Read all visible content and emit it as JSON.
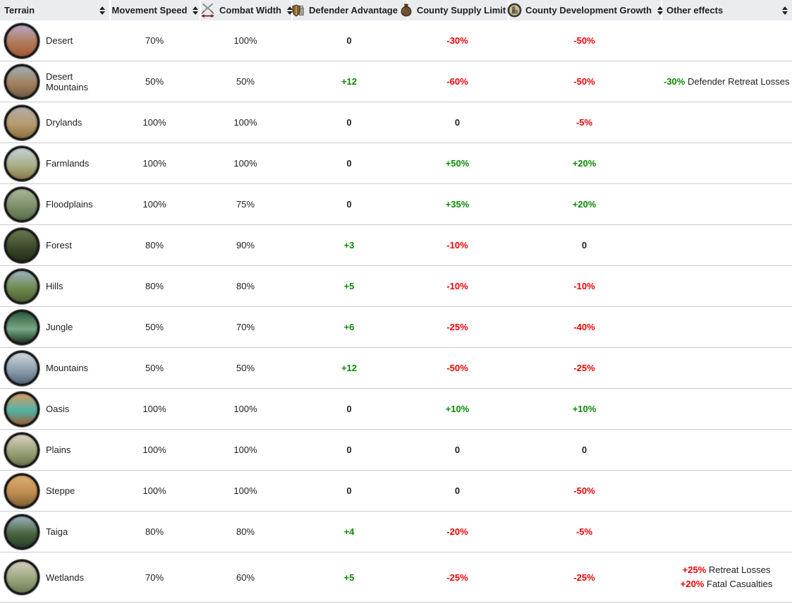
{
  "colors": {
    "green": "#0a8a00",
    "red": "#ee0000",
    "header_bg": "#eaecf0",
    "row_border": "#cccccc"
  },
  "table": {
    "headers": [
      {
        "label": "Terrain",
        "icon": null,
        "align": "left"
      },
      {
        "label": "Movement Speed",
        "icon": null,
        "align": "center"
      },
      {
        "label": "Combat Width",
        "icon": "combat-width-icon",
        "align": "center"
      },
      {
        "label": "Defender Advantage",
        "icon": "defender-advantage-icon",
        "align": "center"
      },
      {
        "label": "County Supply Limit",
        "icon": "county-supply-limit-icon",
        "align": "center"
      },
      {
        "label": "County Development Growth",
        "icon": "county-development-growth-icon",
        "align": "center"
      },
      {
        "label": "Other effects",
        "icon": null,
        "align": "left"
      }
    ],
    "rows": [
      {
        "terrain": "Desert",
        "movement_speed": "70%",
        "combat_width": "100%",
        "defender_advantage": {
          "text": "0",
          "style": "bold"
        },
        "county_supply_limit": {
          "text": "-30%",
          "style": "red"
        },
        "county_development_growth": {
          "text": "-50%",
          "style": "red"
        },
        "other_effects": [],
        "icon_gradient": [
          "#bba6c6",
          "#b07a58",
          "#a35a36"
        ]
      },
      {
        "terrain": "Desert Mountains",
        "movement_speed": "50%",
        "combat_width": "50%",
        "defender_advantage": {
          "text": "+12",
          "style": "green"
        },
        "county_supply_limit": {
          "text": "-60%",
          "style": "red"
        },
        "county_development_growth": {
          "text": "-50%",
          "style": "red"
        },
        "other_effects": [
          {
            "value": "-30%",
            "style": "green",
            "label": "Defender Retreat Losses"
          }
        ],
        "icon_gradient": [
          "#9fb0b4",
          "#a3815f",
          "#6e5a43"
        ]
      },
      {
        "terrain": "Drylands",
        "movement_speed": "100%",
        "combat_width": "100%",
        "defender_advantage": {
          "text": "0",
          "style": "bold"
        },
        "county_supply_limit": {
          "text": "0",
          "style": "bold"
        },
        "county_development_growth": {
          "text": "-5%",
          "style": "red"
        },
        "other_effects": [],
        "icon_gradient": [
          "#b3afa6",
          "#b59a6e",
          "#8f6f3f"
        ]
      },
      {
        "terrain": "Farmlands",
        "movement_speed": "100%",
        "combat_width": "100%",
        "defender_advantage": {
          "text": "0",
          "style": "bold"
        },
        "county_supply_limit": {
          "text": "+50%",
          "style": "green"
        },
        "county_development_growth": {
          "text": "+20%",
          "style": "green"
        },
        "other_effects": [],
        "icon_gradient": [
          "#c6d0d8",
          "#a8b086",
          "#8a7a4a"
        ]
      },
      {
        "terrain": "Floodplains",
        "movement_speed": "100%",
        "combat_width": "75%",
        "defender_advantage": {
          "text": "0",
          "style": "bold"
        },
        "county_supply_limit": {
          "text": "+35%",
          "style": "green"
        },
        "county_development_growth": {
          "text": "+20%",
          "style": "green"
        },
        "other_effects": [],
        "icon_gradient": [
          "#aab89a",
          "#7d8f6a",
          "#5a6b4a"
        ]
      },
      {
        "terrain": "Forest",
        "movement_speed": "80%",
        "combat_width": "90%",
        "defender_advantage": {
          "text": "+3",
          "style": "green"
        },
        "county_supply_limit": {
          "text": "-10%",
          "style": "red"
        },
        "county_development_growth": {
          "text": "0",
          "style": "bold"
        },
        "other_effects": [],
        "icon_gradient": [
          "#6a7a52",
          "#3d4a2c",
          "#232d18"
        ]
      },
      {
        "terrain": "Hills",
        "movement_speed": "80%",
        "combat_width": "80%",
        "defender_advantage": {
          "text": "+5",
          "style": "green"
        },
        "county_supply_limit": {
          "text": "-10%",
          "style": "red"
        },
        "county_development_growth": {
          "text": "-10%",
          "style": "red"
        },
        "other_effects": [],
        "icon_gradient": [
          "#9fb3bd",
          "#6f8a50",
          "#4a6134"
        ]
      },
      {
        "terrain": "Jungle",
        "movement_speed": "50%",
        "combat_width": "70%",
        "defender_advantage": {
          "text": "+6",
          "style": "green"
        },
        "county_supply_limit": {
          "text": "-25%",
          "style": "red"
        },
        "county_development_growth": {
          "text": "-40%",
          "style": "red"
        },
        "other_effects": [],
        "icon_gradient": [
          "#2e5a3c",
          "#79a886",
          "#1c3824"
        ]
      },
      {
        "terrain": "Mountains",
        "movement_speed": "50%",
        "combat_width": "50%",
        "defender_advantage": {
          "text": "+12",
          "style": "green"
        },
        "county_supply_limit": {
          "text": "-50%",
          "style": "red"
        },
        "county_development_growth": {
          "text": "-25%",
          "style": "red"
        },
        "other_effects": [],
        "icon_gradient": [
          "#cfd8de",
          "#8da0ad",
          "#55677a"
        ]
      },
      {
        "terrain": "Oasis",
        "movement_speed": "100%",
        "combat_width": "100%",
        "defender_advantage": {
          "text": "0",
          "style": "bold"
        },
        "county_supply_limit": {
          "text": "+10%",
          "style": "green"
        },
        "county_development_growth": {
          "text": "+10%",
          "style": "green"
        },
        "other_effects": [],
        "icon_gradient": [
          "#d99a66",
          "#4fb3a6",
          "#a05c35"
        ]
      },
      {
        "terrain": "Plains",
        "movement_speed": "100%",
        "combat_width": "100%",
        "defender_advantage": {
          "text": "0",
          "style": "bold"
        },
        "county_supply_limit": {
          "text": "0",
          "style": "bold"
        },
        "county_development_growth": {
          "text": "0",
          "style": "bold"
        },
        "other_effects": [],
        "icon_gradient": [
          "#d9d2c3",
          "#9aa379",
          "#6a744a"
        ]
      },
      {
        "terrain": "Steppe",
        "movement_speed": "100%",
        "combat_width": "100%",
        "defender_advantage": {
          "text": "0",
          "style": "bold"
        },
        "county_supply_limit": {
          "text": "0",
          "style": "bold"
        },
        "county_development_growth": {
          "text": "-50%",
          "style": "red"
        },
        "other_effects": [],
        "icon_gradient": [
          "#dcae6e",
          "#c08d4f",
          "#7d5f33"
        ]
      },
      {
        "terrain": "Taiga",
        "movement_speed": "80%",
        "combat_width": "80%",
        "defender_advantage": {
          "text": "+4",
          "style": "green"
        },
        "county_supply_limit": {
          "text": "-20%",
          "style": "red"
        },
        "county_development_growth": {
          "text": "-5%",
          "style": "red"
        },
        "other_effects": [],
        "icon_gradient": [
          "#9cb3bf",
          "#49663f",
          "#273d2a"
        ]
      },
      {
        "terrain": "Wetlands",
        "movement_speed": "70%",
        "combat_width": "60%",
        "defender_advantage": {
          "text": "+5",
          "style": "green"
        },
        "county_supply_limit": {
          "text": "-25%",
          "style": "red"
        },
        "county_development_growth": {
          "text": "-25%",
          "style": "red"
        },
        "other_effects": [
          {
            "value": "+25%",
            "style": "red",
            "label": "Retreat Losses"
          },
          {
            "value": "+20%",
            "style": "red",
            "label": "Fatal Casualties"
          }
        ],
        "icon_gradient": [
          "#d3cdbd",
          "#9aa67e",
          "#6f7c55"
        ]
      }
    ]
  }
}
